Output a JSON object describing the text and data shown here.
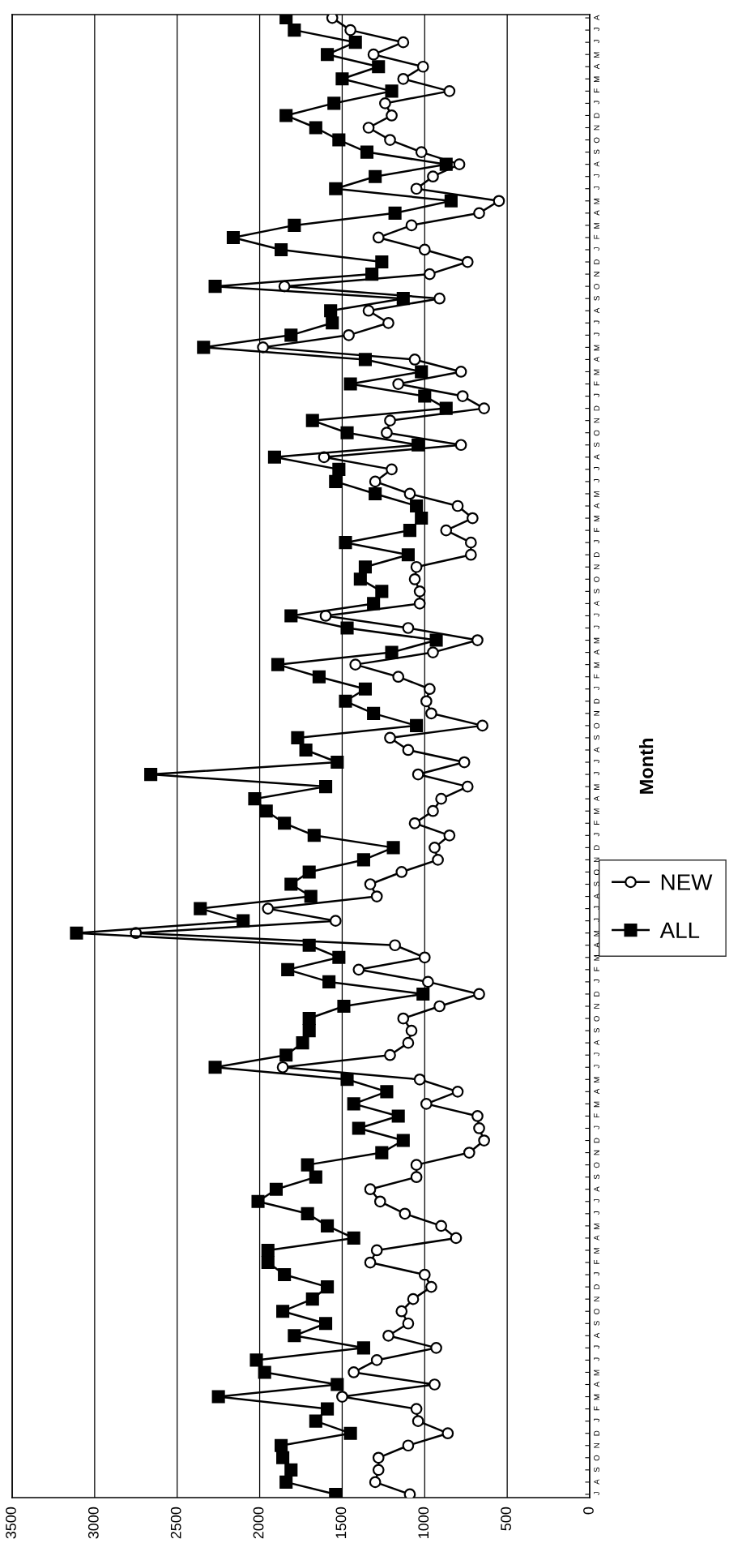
{
  "chart_data": {
    "type": "line",
    "orientation": "horizontal",
    "ylabel": "Month",
    "categories": [
      "A",
      "J",
      "J",
      "M",
      "A",
      "M",
      "F",
      "J",
      "D",
      "N",
      "O",
      "S",
      "A",
      "J",
      "J",
      "M",
      "A",
      "M",
      "F",
      "J",
      "D",
      "N",
      "O",
      "S",
      "A",
      "J",
      "J",
      "M",
      "A",
      "M",
      "F",
      "J",
      "D",
      "N",
      "O",
      "S",
      "A",
      "J",
      "J",
      "M",
      "A",
      "M",
      "F",
      "J",
      "D",
      "N",
      "O",
      "S",
      "A",
      "J",
      "J",
      "M",
      "A",
      "M",
      "F",
      "J",
      "D",
      "N",
      "O",
      "S",
      "A",
      "J",
      "J",
      "M",
      "A",
      "M",
      "F",
      "J",
      "D",
      "N",
      "O",
      "S",
      "A",
      "J",
      "J",
      "M",
      "A",
      "M",
      "F",
      "J",
      "D",
      "N",
      "O",
      "S",
      "A",
      "J",
      "J",
      "M",
      "A",
      "M",
      "F",
      "J",
      "D",
      "N",
      "O",
      "S",
      "A",
      "J",
      "J",
      "M",
      "A",
      "M",
      "F",
      "J",
      "D",
      "N",
      "O",
      "S",
      "A",
      "J",
      "J",
      "M",
      "A",
      "M",
      "F",
      "J",
      "D",
      "N",
      "O",
      "S",
      "A",
      "J"
    ],
    "series": [
      {
        "name": "NEW",
        "color": "#000000",
        "marker": "circle",
        "values": [
          1560,
          1450,
          1130,
          1310,
          1010,
          1130,
          850,
          1240,
          1200,
          1340,
          1210,
          1020,
          790,
          950,
          1050,
          550,
          670,
          1080,
          1280,
          1000,
          740,
          970,
          1850,
          910,
          1340,
          1220,
          1460,
          1980,
          1060,
          780,
          1160,
          770,
          640,
          1210,
          1230,
          780,
          1610,
          1200,
          1300,
          1090,
          800,
          710,
          870,
          720,
          720,
          1050,
          1060,
          1030,
          1030,
          1600,
          1100,
          680,
          950,
          1420,
          1160,
          970,
          990,
          960,
          650,
          1210,
          1100,
          760,
          1040,
          740,
          900,
          950,
          1060,
          850,
          940,
          920,
          1140,
          1330,
          1290,
          1950,
          1540,
          2750,
          1180,
          1000,
          1400,
          980,
          670,
          910,
          1130,
          1080,
          1100,
          1210,
          1860,
          1030,
          800,
          990,
          680,
          670,
          640,
          730,
          1050,
          1050,
          1330,
          1270,
          1120,
          900,
          810,
          1290,
          1330,
          1000,
          960,
          1070,
          1140,
          1100,
          1220,
          930,
          1290,
          1430,
          940,
          1500,
          1050,
          1040,
          860,
          1100,
          1280,
          1280,
          1300,
          1090
        ]
      },
      {
        "name": "ALL",
        "color": "#000000",
        "marker": "square",
        "values": [
          1840,
          1790,
          1420,
          1590,
          1280,
          1500,
          1200,
          1550,
          1840,
          1660,
          1520,
          1350,
          870,
          1300,
          1540,
          840,
          1180,
          1790,
          2160,
          1870,
          1260,
          1320,
          2270,
          1130,
          1570,
          1560,
          1810,
          2340,
          1360,
          1020,
          1450,
          1000,
          870,
          1680,
          1470,
          1040,
          1910,
          1520,
          1540,
          1300,
          1050,
          1020,
          1090,
          1480,
          1100,
          1360,
          1390,
          1260,
          1310,
          1810,
          1470,
          930,
          1200,
          1890,
          1640,
          1360,
          1480,
          1310,
          1050,
          1770,
          1720,
          1530,
          2660,
          1600,
          2030,
          1960,
          1850,
          1670,
          1190,
          1370,
          1700,
          1810,
          1690,
          2360,
          2100,
          3110,
          1700,
          1520,
          1830,
          1580,
          1010,
          1490,
          1700,
          1700,
          1740,
          1840,
          2270,
          1470,
          1230,
          1430,
          1160,
          1400,
          1130,
          1260,
          1710,
          1660,
          1900,
          2010,
          1710,
          1590,
          1430,
          1950,
          1950,
          1850,
          1590,
          1680,
          1860,
          1600,
          1790,
          1370,
          2020,
          1970,
          1530,
          2250,
          1590,
          1660,
          1450,
          1870,
          1860,
          1810,
          1840,
          1540
        ]
      }
    ],
    "xlim": [
      3500,
      0
    ],
    "xticks": [
      0,
      500,
      1000,
      1500,
      2000,
      2500,
      3000,
      3500
    ],
    "grid": "x",
    "legend": "right",
    "line_style": "solid"
  }
}
